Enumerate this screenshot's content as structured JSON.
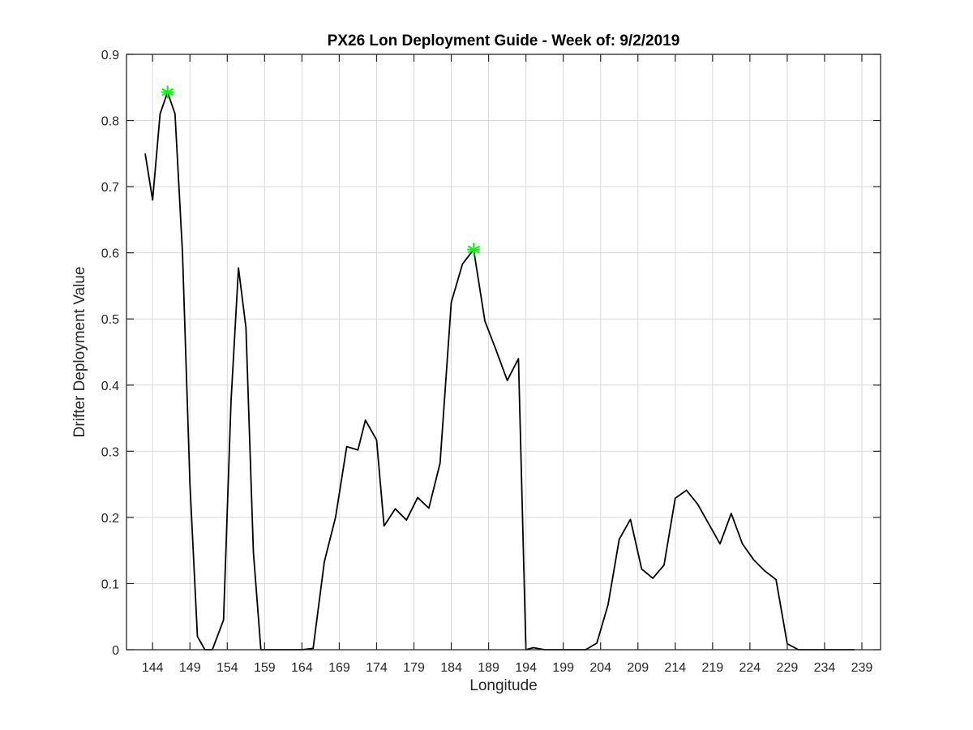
{
  "chart_data": {
    "type": "line",
    "title": "PX26 Lon Deployment Guide - Week of: 9/2/2019",
    "xlabel": "Longitude",
    "ylabel": "Drifter Deployment Value",
    "xlim": [
      140.5,
      241.5
    ],
    "ylim": [
      0,
      0.9
    ],
    "xticks": [
      144,
      149,
      154,
      159,
      164,
      169,
      174,
      179,
      184,
      189,
      194,
      199,
      204,
      209,
      214,
      219,
      224,
      229,
      234,
      239
    ],
    "yticks": [
      0,
      0.1,
      0.2,
      0.3,
      0.4,
      0.5,
      0.6,
      0.7,
      0.8,
      0.9
    ],
    "grid": true,
    "line_color": "#000000",
    "marker_color": "#00ff00",
    "series": [
      {
        "x": [
          143.0,
          144.0,
          145.0,
          146.0,
          147.0,
          148.0,
          149.0,
          150.0,
          151.0,
          152.0,
          153.5,
          154.5,
          155.5,
          156.5,
          157.5,
          158.5,
          160.0,
          162.0,
          164.0,
          165.5,
          167.0,
          168.5,
          170.0,
          171.5,
          172.5,
          174.0,
          175.0,
          176.5,
          178.0,
          179.5,
          181.0,
          182.5,
          184.0,
          185.5,
          187.0,
          188.5,
          190.0,
          191.5,
          193.0,
          194.0,
          195.0,
          196.5,
          198.0,
          200.0,
          202.0,
          203.5,
          205.0,
          206.5,
          208.0,
          209.5,
          211.0,
          212.5,
          214.0,
          215.5,
          217.0,
          218.5,
          220.0,
          221.5,
          223.0,
          224.5,
          226.0,
          227.5,
          229.0,
          230.5,
          232.0,
          234.0,
          236.0,
          238.0
        ],
        "y": [
          0.75,
          0.68,
          0.81,
          0.843,
          0.81,
          0.6,
          0.25,
          0.02,
          0.0,
          0.0,
          0.045,
          0.375,
          0.577,
          0.487,
          0.147,
          0.0,
          0.0,
          0.0,
          0.0,
          0.002,
          0.133,
          0.2,
          0.307,
          0.302,
          0.347,
          0.317,
          0.187,
          0.213,
          0.196,
          0.23,
          0.214,
          0.282,
          0.525,
          0.583,
          0.605,
          0.497,
          0.453,
          0.407,
          0.44,
          0.0,
          0.003,
          0.0,
          0.0,
          0.0,
          0.0,
          0.01,
          0.068,
          0.167,
          0.197,
          0.122,
          0.108,
          0.128,
          0.229,
          0.241,
          0.22,
          0.19,
          0.16,
          0.206,
          0.16,
          0.136,
          0.119,
          0.106,
          0.009,
          0.0,
          0.0,
          0.0,
          0.0,
          0.0
        ]
      }
    ],
    "markers": [
      {
        "x": 146.0,
        "y": 0.843
      },
      {
        "x": 187.0,
        "y": 0.605
      }
    ]
  }
}
